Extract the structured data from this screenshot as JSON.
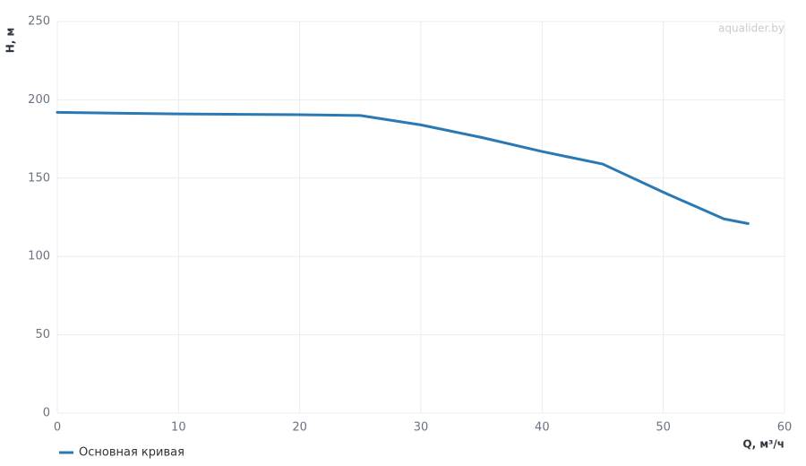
{
  "chart_data": {
    "type": "line",
    "x_label": "Q, м³/ч",
    "y_label": "H, м",
    "watermark": "aqualider.by",
    "x": [
      0,
      10,
      20,
      25,
      30,
      35,
      40,
      45,
      50,
      55,
      57
    ],
    "series": [
      {
        "name": "Основная кривая",
        "color": "#2a79b4",
        "values": [
          192,
          191,
          190.5,
          190,
          184,
          176,
          167,
          159,
          141,
          124,
          121
        ]
      }
    ],
    "xlim": [
      0,
      60
    ],
    "xticks": [
      0,
      10,
      20,
      30,
      40,
      50,
      60
    ],
    "ylim": [
      0,
      250
    ],
    "yticks": [
      0,
      50,
      100,
      150,
      200,
      250
    ],
    "grid": true,
    "legend": "bottom-left"
  }
}
